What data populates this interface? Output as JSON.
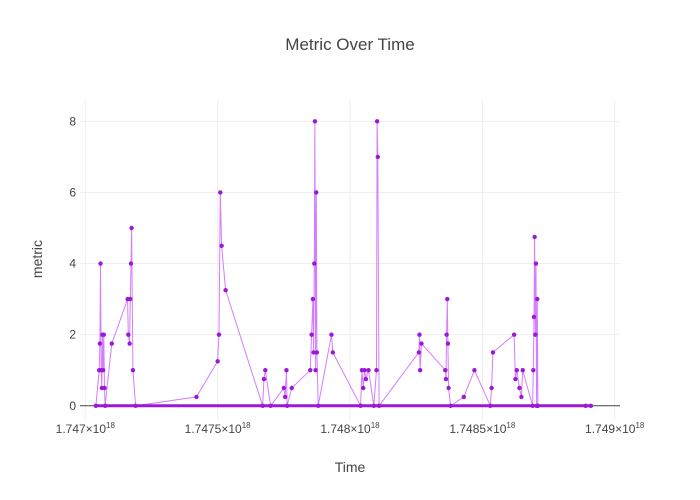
{
  "chart_data": {
    "type": "line",
    "mode": "lines+markers",
    "title": "Metric Over Time",
    "xlabel": "Time",
    "ylabel": "metric",
    "xlim": [
      1.74698e+18,
      1.74902e+18
    ],
    "ylim": [
      -0.4,
      8.6
    ],
    "x_tick_values": [
      1.747e+18,
      1.7475e+18,
      1.748e+18,
      1.7485e+18,
      1.749e+18
    ],
    "x_tick_mantissa": [
      "1.747",
      "1.7475",
      "1.748",
      "1.7485",
      "1.749"
    ],
    "x_tick_times": "×10",
    "x_tick_exponent": "18",
    "y_tick_values": [
      0,
      2,
      4,
      6,
      8
    ],
    "y_tick_labels": [
      "0",
      "2",
      "4",
      "6",
      "8"
    ],
    "grid": true,
    "line_color": "#cc66ff",
    "marker_color": "#9b19d6",
    "series": [
      {
        "x": [
          1.74704e+18,
          1.7470525e+18,
          1.747055e+18,
          1.7470575e+18,
          1.74706e+18,
          1.7470625e+18,
          1.747065e+18,
          1.7470675e+18,
          1.74707e+18,
          1.7470725e+18,
          1.747075e+18,
          1.7471e+18,
          1.74716e+18,
          1.7471625e+18,
          1.7471675e+18,
          1.74717e+18,
          1.7471725e+18,
          1.747175e+18,
          1.74718e+18,
          1.74719e+18,
          1.74742e+18,
          1.7475e+18,
          1.747505e+18,
          1.74751e+18,
          1.747515e+18,
          1.74753e+18,
          1.74767e+18,
          1.747675e+18,
          1.74768e+18,
          1.7477e+18,
          1.74775e+18,
          1.747755e+18,
          1.74776e+18,
          1.7477625e+18,
          1.74778e+18,
          1.74785e+18,
          1.747855e+18,
          1.74786e+18,
          1.7478625e+18,
          1.747865e+18,
          1.7478675e+18,
          1.74787e+18,
          1.7478725e+18,
          1.747875e+18,
          1.74788e+18,
          1.74793e+18,
          1.747935e+18,
          1.74804e+18,
          1.748045e+18,
          1.74805e+18,
          1.748055e+18,
          1.74806e+18,
          1.74807e+18,
          1.74809e+18,
          1.7481e+18,
          1.7481025e+18,
          1.748105e+18,
          1.74811e+18,
          1.74826e+18,
          1.7482625e+18,
          1.748265e+18,
          1.74827e+18,
          1.74836e+18,
          1.7483625e+18,
          1.748365e+18,
          1.7483675e+18,
          1.74837e+18,
          1.7483725e+18,
          1.74838e+18,
          1.74843e+18,
          1.74847e+18,
          1.74853e+18,
          1.748535e+18,
          1.74854e+18,
          1.74862e+18,
          1.748625e+18,
          1.74863e+18,
          1.74864e+18,
          1.7486475e+18,
          1.7486525e+18,
          1.74869e+18,
          1.7486925e+18,
          1.748695e+18,
          1.7486975e+18,
          1.7487e+18,
          1.7487025e+18,
          1.748705e+18,
          1.7487075e+18,
          1.74871e+18,
          1.74889e+18,
          1.74891e+18
        ],
        "y": [
          0,
          1,
          1.75,
          4,
          1,
          0.5,
          2,
          1,
          2,
          0.5,
          0,
          1.75,
          3,
          2,
          1.75,
          3,
          4,
          5,
          1,
          0,
          0.25,
          1.25,
          2,
          6,
          4.5,
          3.25,
          0,
          0.75,
          1,
          0,
          0.5,
          0.25,
          1,
          0,
          0.5,
          1,
          2,
          3,
          1.5,
          4,
          8,
          1,
          6,
          1.5,
          0,
          2,
          1.5,
          0,
          1,
          0.5,
          1,
          0.75,
          1,
          0,
          1,
          8,
          7,
          0,
          1.5,
          2,
          1,
          1.75,
          1,
          0.75,
          2,
          3,
          1.75,
          0.5,
          0,
          0.25,
          1,
          0,
          0.5,
          1.5,
          2,
          0.75,
          1,
          0.5,
          0.25,
          1,
          0,
          1,
          2.5,
          4.75,
          2,
          4,
          0,
          3,
          0,
          0,
          0
        ]
      }
    ]
  }
}
